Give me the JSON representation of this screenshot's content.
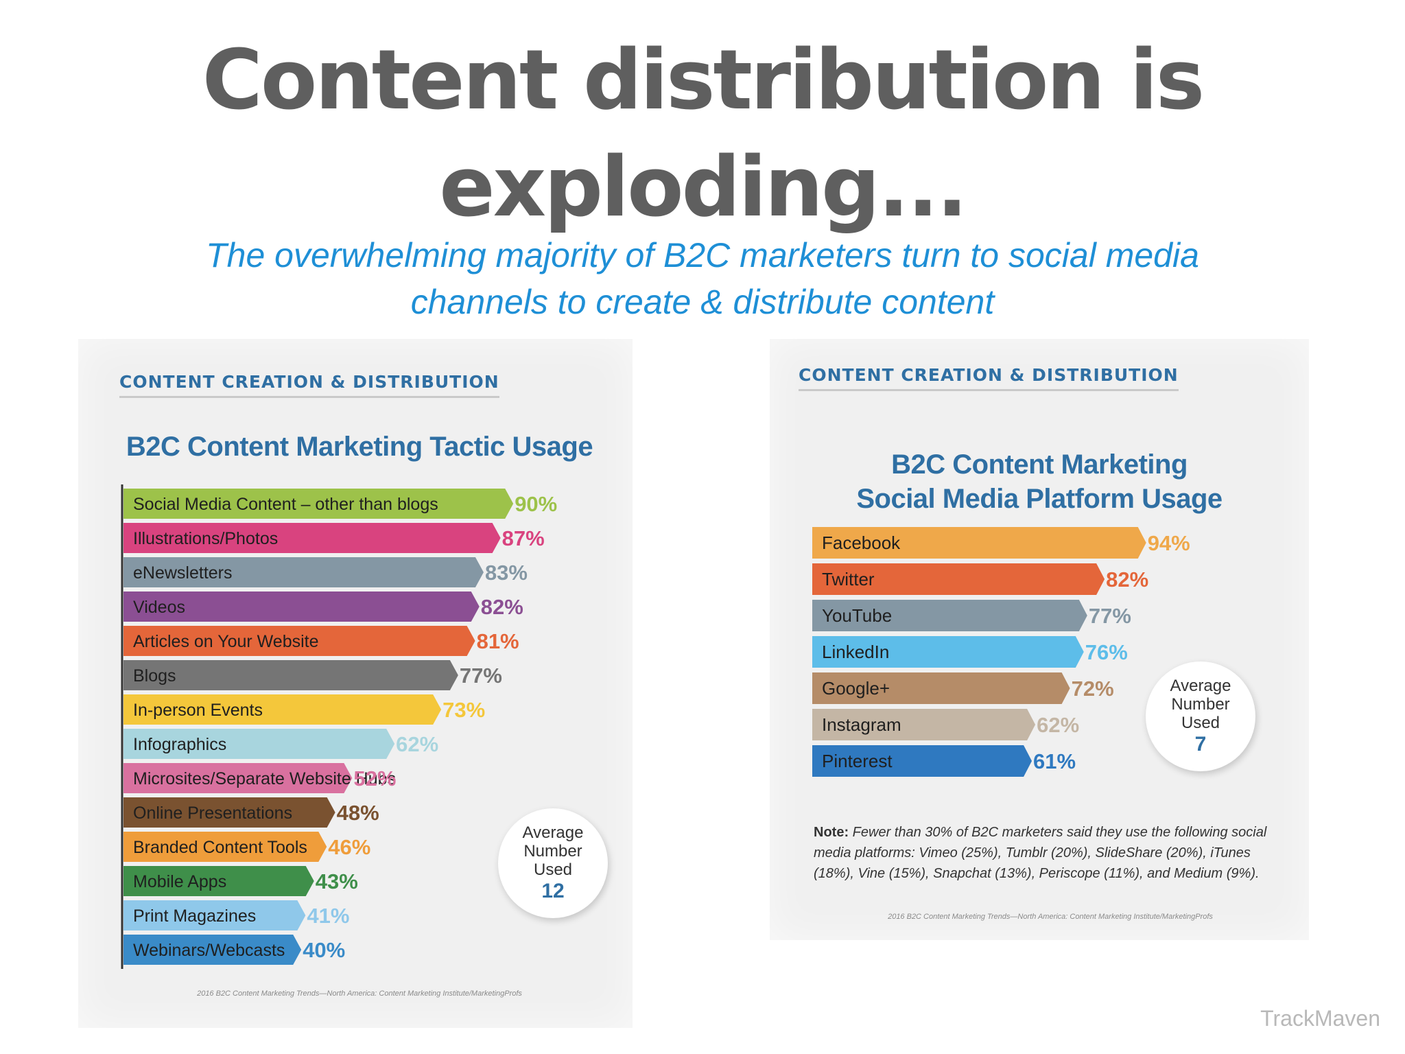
{
  "slide": {
    "title_line1": "Content distribution is",
    "title_line2": "exploding...",
    "subtitle_line1": "The overwhelming majority of B2C marketers turn to social media",
    "subtitle_line2": "channels to create & distribute content",
    "brand": "TrackMaven"
  },
  "chart_data": [
    {
      "type": "bar",
      "orientation": "horizontal",
      "kicker": "CONTENT CREATION & DISTRIBUTION",
      "title": "B2C Content Marketing Tactic Usage",
      "categories": [
        "Social Media Content – other than blogs",
        "Illustrations/Photos",
        "eNewsletters",
        "Videos",
        "Articles on Your Website",
        "Blogs",
        "In-person Events",
        "Infographics",
        "Microsites/Separate Website Hubs",
        "Online Presentations",
        "Branded Content Tools",
        "Mobile Apps",
        "Print Magazines",
        "Webinars/Webcasts"
      ],
      "values": [
        90,
        87,
        83,
        82,
        81,
        77,
        73,
        62,
        52,
        48,
        46,
        43,
        41,
        40
      ],
      "value_suffix": "%",
      "colors": [
        "#9dc24a",
        "#d9437f",
        "#8497a4",
        "#8b4f93",
        "#e4663a",
        "#757575",
        "#f4c73b",
        "#a8d5de",
        "#d9719f",
        "#7a5230",
        "#ef9d3b",
        "#3f8f4a",
        "#8fc8ea",
        "#3a8bc8"
      ],
      "xlim": [
        0,
        100
      ],
      "average_label": [
        "Average",
        "Number",
        "Used"
      ],
      "average_value": "12",
      "source": "2016 B2C Content Marketing Trends—North America: Content Marketing Institute/MarketingProfs"
    },
    {
      "type": "bar",
      "orientation": "horizontal",
      "kicker": "CONTENT CREATION & DISTRIBUTION",
      "title_lines": [
        "B2C Content Marketing",
        "Social Media Platform Usage"
      ],
      "categories": [
        "Facebook",
        "Twitter",
        "YouTube",
        "LinkedIn",
        "Google+",
        "Instagram",
        "Pinterest"
      ],
      "values": [
        94,
        82,
        77,
        76,
        72,
        62,
        61
      ],
      "value_suffix": "%",
      "colors": [
        "#efa84a",
        "#e4663a",
        "#8497a4",
        "#5dbde9",
        "#b58c68",
        "#c4b6a5",
        "#2f79c0"
      ],
      "xlim": [
        0,
        100
      ],
      "average_label": [
        "Average",
        "Number",
        "Used"
      ],
      "average_value": "7",
      "note_label": "Note:",
      "note": "Fewer than 30% of B2C marketers said they use the following social media platforms: Vimeo (25%), Tumblr (20%), SlideShare (20%), iTunes (18%), Vine (15%), Snapchat (13%), Periscope (11%), and Medium (9%).",
      "source": "2016 B2C Content Marketing Trends—North America: Content Marketing Institute/MarketingProfs"
    }
  ]
}
